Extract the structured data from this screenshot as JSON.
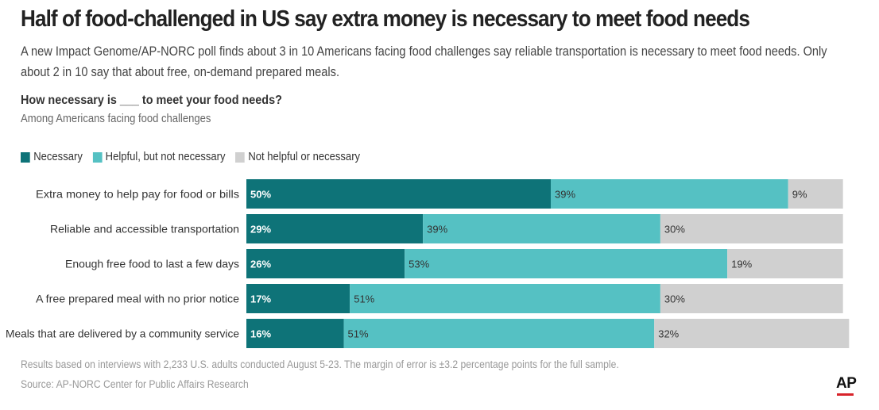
{
  "header": {
    "title": "Half of food-challenged in US say extra money is necessary to meet food needs",
    "subtitle": "A new Impact Genome/AP-NORC poll finds about 3 in 10 Americans facing food challenges say reliable transportation is necessary to meet food needs. Only about 2 in 10 say that about free, on-demand prepared meals.",
    "question": "How necessary is ___ to meet your food needs?",
    "population": "Among Americans facing food challenges"
  },
  "legend": [
    {
      "label": "Necessary",
      "color": "#0e7378"
    },
    {
      "label": "Helpful, but not necessary",
      "color": "#55c1c3"
    },
    {
      "label": "Not helpful or necessary",
      "color": "#d0d0d0"
    }
  ],
  "chart_data": {
    "type": "bar",
    "orientation": "horizontal",
    "stacked": true,
    "categories": [
      "Extra money to help pay for food or bills",
      "Reliable and accessible transportation",
      "Enough free food to last a few days",
      "A free prepared meal with no prior notice",
      "Meals that are delivered by a community service"
    ],
    "series": [
      {
        "name": "Necessary",
        "values": [
          50,
          29,
          26,
          17,
          16
        ],
        "color": "#0e7378"
      },
      {
        "name": "Helpful, but not necessary",
        "values": [
          39,
          39,
          53,
          51,
          51
        ],
        "color": "#55c1c3"
      },
      {
        "name": "Not helpful or necessary",
        "values": [
          9,
          30,
          19,
          30,
          32
        ],
        "color": "#d0d0d0"
      }
    ],
    "value_suffix": "%",
    "legend_position": "top-left",
    "grid": false
  },
  "footer": {
    "note": "Results based on interviews with 2,233 U.S. adults conducted August 5-23. The margin of error is ±3.2 percentage points for the full sample.",
    "source": "Source: AP-NORC Center for Public Affairs Research",
    "logo": "AP"
  }
}
